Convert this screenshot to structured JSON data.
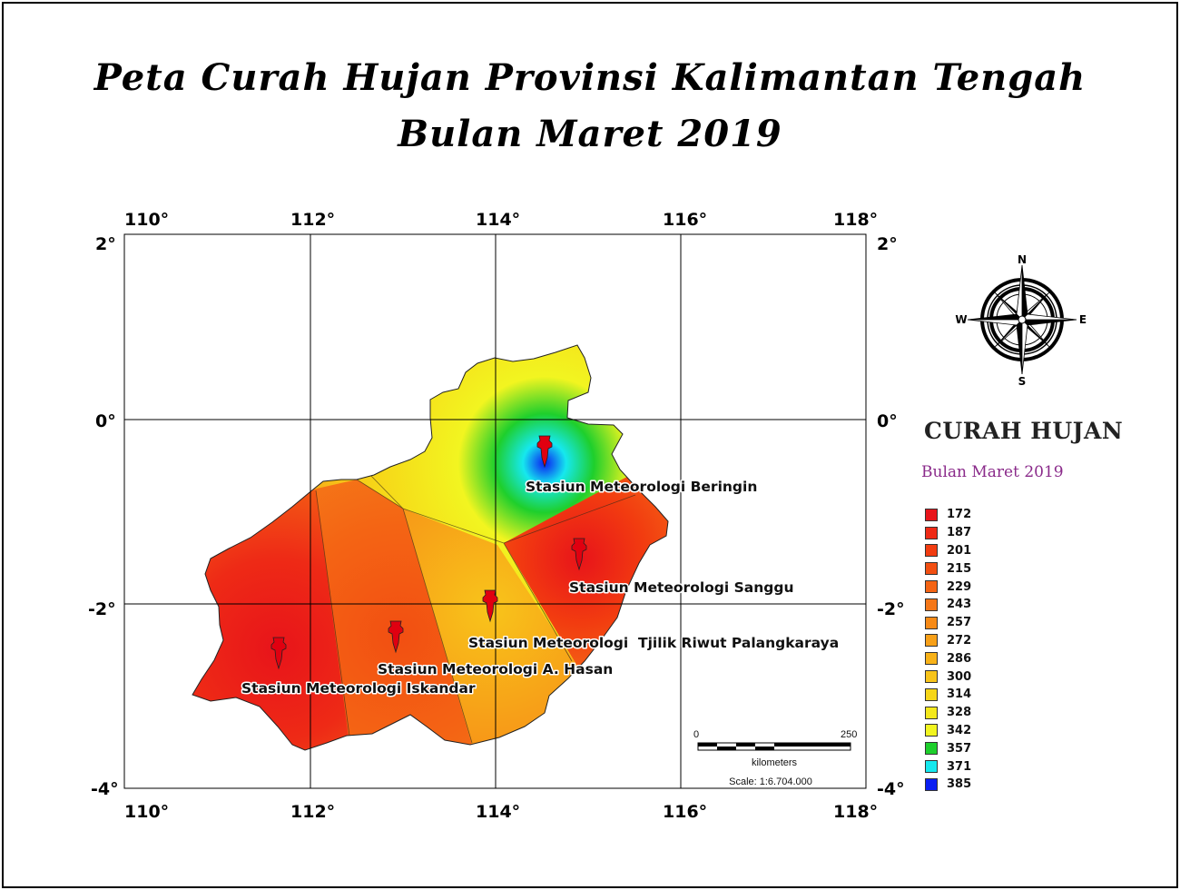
{
  "title": {
    "line1": "Peta Curah Hujan Provinsi Kalimantan Tengah",
    "line2": "Bulan Maret 2019"
  },
  "axes": {
    "longitude_labels": [
      "110°",
      "112°",
      "114°",
      "116°",
      "118°"
    ],
    "latitude_labels": [
      "2°",
      "0°",
      "-2°",
      "-4°"
    ]
  },
  "compass": {
    "n": "N",
    "s": "S",
    "e": "E",
    "w": "W"
  },
  "stations": [
    {
      "name": "Stasiun Meteorologi Beringin",
      "lon": 114.55,
      "lat": -0.35,
      "label": "Stasiun Meteorologi Beringin"
    },
    {
      "name": "Stasiun Meteorologi Sanggu",
      "lon": 114.9,
      "lat": -1.45,
      "label": "Stasiun Meteorologi Sanggu"
    },
    {
      "name": "Stasiun Meteorologi Tjilik Riwut Palangkaraya",
      "lon": 113.95,
      "lat": -1.95,
      "label": "Stasiun Meteorologi  Tjilik Riwut Palangkaraya"
    },
    {
      "name": "Stasiun Meteorologi A. Hasan",
      "lon": 112.93,
      "lat": -2.3,
      "label": "Stasiun Meteorologi A. Hasan"
    },
    {
      "name": "Stasiun Meteorologi Iskandar",
      "lon": 111.65,
      "lat": -2.55,
      "label": "Stasiun Meteorologi Iskandar"
    }
  ],
  "legend": {
    "title": "CURAH HUJAN",
    "subtitle": "Bulan Maret 2019",
    "items": [
      {
        "value": "172",
        "color": "#e8141a"
      },
      {
        "value": "187",
        "color": "#ee2a16"
      },
      {
        "value": "201",
        "color": "#f23c10"
      },
      {
        "value": "215",
        "color": "#f24f12"
      },
      {
        "value": "229",
        "color": "#f46414"
      },
      {
        "value": "243",
        "color": "#f57718"
      },
      {
        "value": "257",
        "color": "#f78a16"
      },
      {
        "value": "272",
        "color": "#f7a018"
      },
      {
        "value": "286",
        "color": "#f8b218"
      },
      {
        "value": "300",
        "color": "#f8c41a"
      },
      {
        "value": "314",
        "color": "#f6d618"
      },
      {
        "value": "328",
        "color": "#f4e81c"
      },
      {
        "value": "342",
        "color": "#f2f520"
      },
      {
        "value": "357",
        "color": "#1ecf2c"
      },
      {
        "value": "371",
        "color": "#16e8ee"
      },
      {
        "value": "385",
        "color": "#0a1ef2"
      }
    ]
  },
  "scale_bar": {
    "start": "0",
    "end": "250",
    "unit": "kilometers",
    "scale_text": "Scale: 1:6.704.000"
  }
}
